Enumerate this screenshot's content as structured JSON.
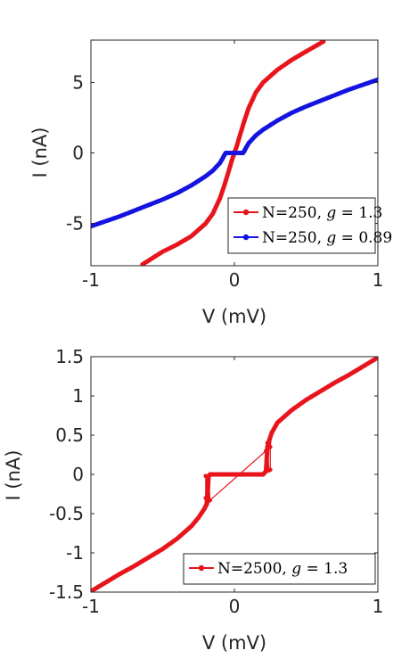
{
  "colors": {
    "red": "#e8141c",
    "blue": "#1414e0",
    "axis": "#262626"
  },
  "chart_data": [
    {
      "type": "line",
      "xlabel": "V (mV)",
      "ylabel": "I (nA)",
      "xlim": [
        -1,
        1
      ],
      "ylim": [
        -8,
        8
      ],
      "xticks": [
        -1,
        0,
        1
      ],
      "xtick_labels": [
        "-1",
        "0",
        "1"
      ],
      "yticks": [
        -5,
        0,
        5
      ],
      "ytick_labels": [
        "-5",
        "0",
        "5"
      ],
      "grid": false,
      "legend_position": "bottom-right",
      "series": [
        {
          "name": "N=250, g = 1.3",
          "legend_prefix": "N=250, ",
          "legend_var": "g",
          "legend_suffix": " = 1.3",
          "color": "#e8141c",
          "x": [
            -0.64,
            -0.5,
            -0.4,
            -0.3,
            -0.2,
            -0.15,
            -0.1,
            -0.07,
            -0.04,
            -0.02,
            0.0,
            0.02,
            0.04,
            0.07,
            0.1,
            0.15,
            0.2,
            0.3,
            0.4,
            0.5,
            0.62
          ],
          "y": [
            -7.9,
            -7.0,
            -6.5,
            -5.9,
            -5.0,
            -4.3,
            -3.2,
            -2.3,
            -1.3,
            -0.6,
            0.0,
            0.6,
            1.3,
            2.3,
            3.2,
            4.3,
            5.0,
            5.9,
            6.6,
            7.2,
            7.9
          ]
        },
        {
          "name": "N=250, g = 0.89",
          "legend_prefix": "N=250, ",
          "legend_var": "g",
          "legend_suffix": " = 0.89",
          "color": "#1414e0",
          "x": [
            -1.0,
            -0.9,
            -0.8,
            -0.7,
            -0.6,
            -0.5,
            -0.4,
            -0.3,
            -0.2,
            -0.15,
            -0.1,
            -0.08,
            -0.07,
            -0.06,
            0.0,
            0.06,
            0.07,
            0.08,
            0.1,
            0.15,
            0.2,
            0.3,
            0.4,
            0.5,
            0.6,
            0.7,
            0.8,
            0.9,
            1.0
          ],
          "y": [
            -5.2,
            -4.85,
            -4.5,
            -4.1,
            -3.7,
            -3.3,
            -2.85,
            -2.3,
            -1.65,
            -1.25,
            -0.7,
            -0.35,
            -0.15,
            0.0,
            0.0,
            0.0,
            0.15,
            0.35,
            0.7,
            1.25,
            1.65,
            2.3,
            2.85,
            3.3,
            3.7,
            4.1,
            4.5,
            4.85,
            5.2
          ]
        }
      ]
    },
    {
      "type": "line",
      "xlabel": "V (mV)",
      "ylabel": "I (nA)",
      "xlim": [
        -1,
        1
      ],
      "ylim": [
        -1.5,
        1.5
      ],
      "xticks": [
        -1,
        0,
        1
      ],
      "xtick_labels": [
        "-1",
        "0",
        "1"
      ],
      "yticks": [
        -1.5,
        -1,
        -0.5,
        0,
        0.5,
        1,
        1.5
      ],
      "ytick_labels": [
        "-1.5",
        "-1",
        "-0.5",
        "0",
        "0.5",
        "1",
        "1.5"
      ],
      "grid": false,
      "legend_position": "bottom-right",
      "series": [
        {
          "name": "N=2500, g = 1.3",
          "legend_prefix": "N=2500, ",
          "legend_var": "g",
          "legend_suffix": " = 1.3",
          "color": "#e8141c",
          "x": [
            -1.0,
            -0.9,
            -0.8,
            -0.7,
            -0.6,
            -0.5,
            -0.4,
            -0.3,
            -0.25,
            -0.21,
            -0.19,
            -0.18,
            -0.17,
            -0.15,
            -0.1,
            0.0,
            0.1,
            0.2,
            0.21,
            0.22,
            0.23,
            0.24,
            0.26,
            0.3,
            0.4,
            0.5,
            0.6,
            0.7,
            0.8,
            0.9,
            1.0
          ],
          "y": [
            -1.49,
            -1.38,
            -1.27,
            -1.17,
            -1.06,
            -0.95,
            -0.82,
            -0.66,
            -0.55,
            -0.44,
            -0.37,
            -0.03,
            0.0,
            0.0,
            0.0,
            0.0,
            0.0,
            0.0,
            0.02,
            0.04,
            0.35,
            0.42,
            0.53,
            0.66,
            0.82,
            0.95,
            1.06,
            1.17,
            1.27,
            1.38,
            1.49
          ]
        }
      ],
      "hysteresis": {
        "x": [
          -0.21,
          -0.2,
          -0.2,
          -0.19,
          -0.18,
          -0.17,
          0.22,
          0.23,
          0.24,
          0.25,
          0.25,
          0.26
        ],
        "y": [
          -0.44,
          -0.3,
          -0.02,
          -0.25,
          -0.02,
          -0.33,
          0.3,
          0.4,
          0.05,
          0.06,
          0.35,
          0.53
        ]
      }
    }
  ]
}
